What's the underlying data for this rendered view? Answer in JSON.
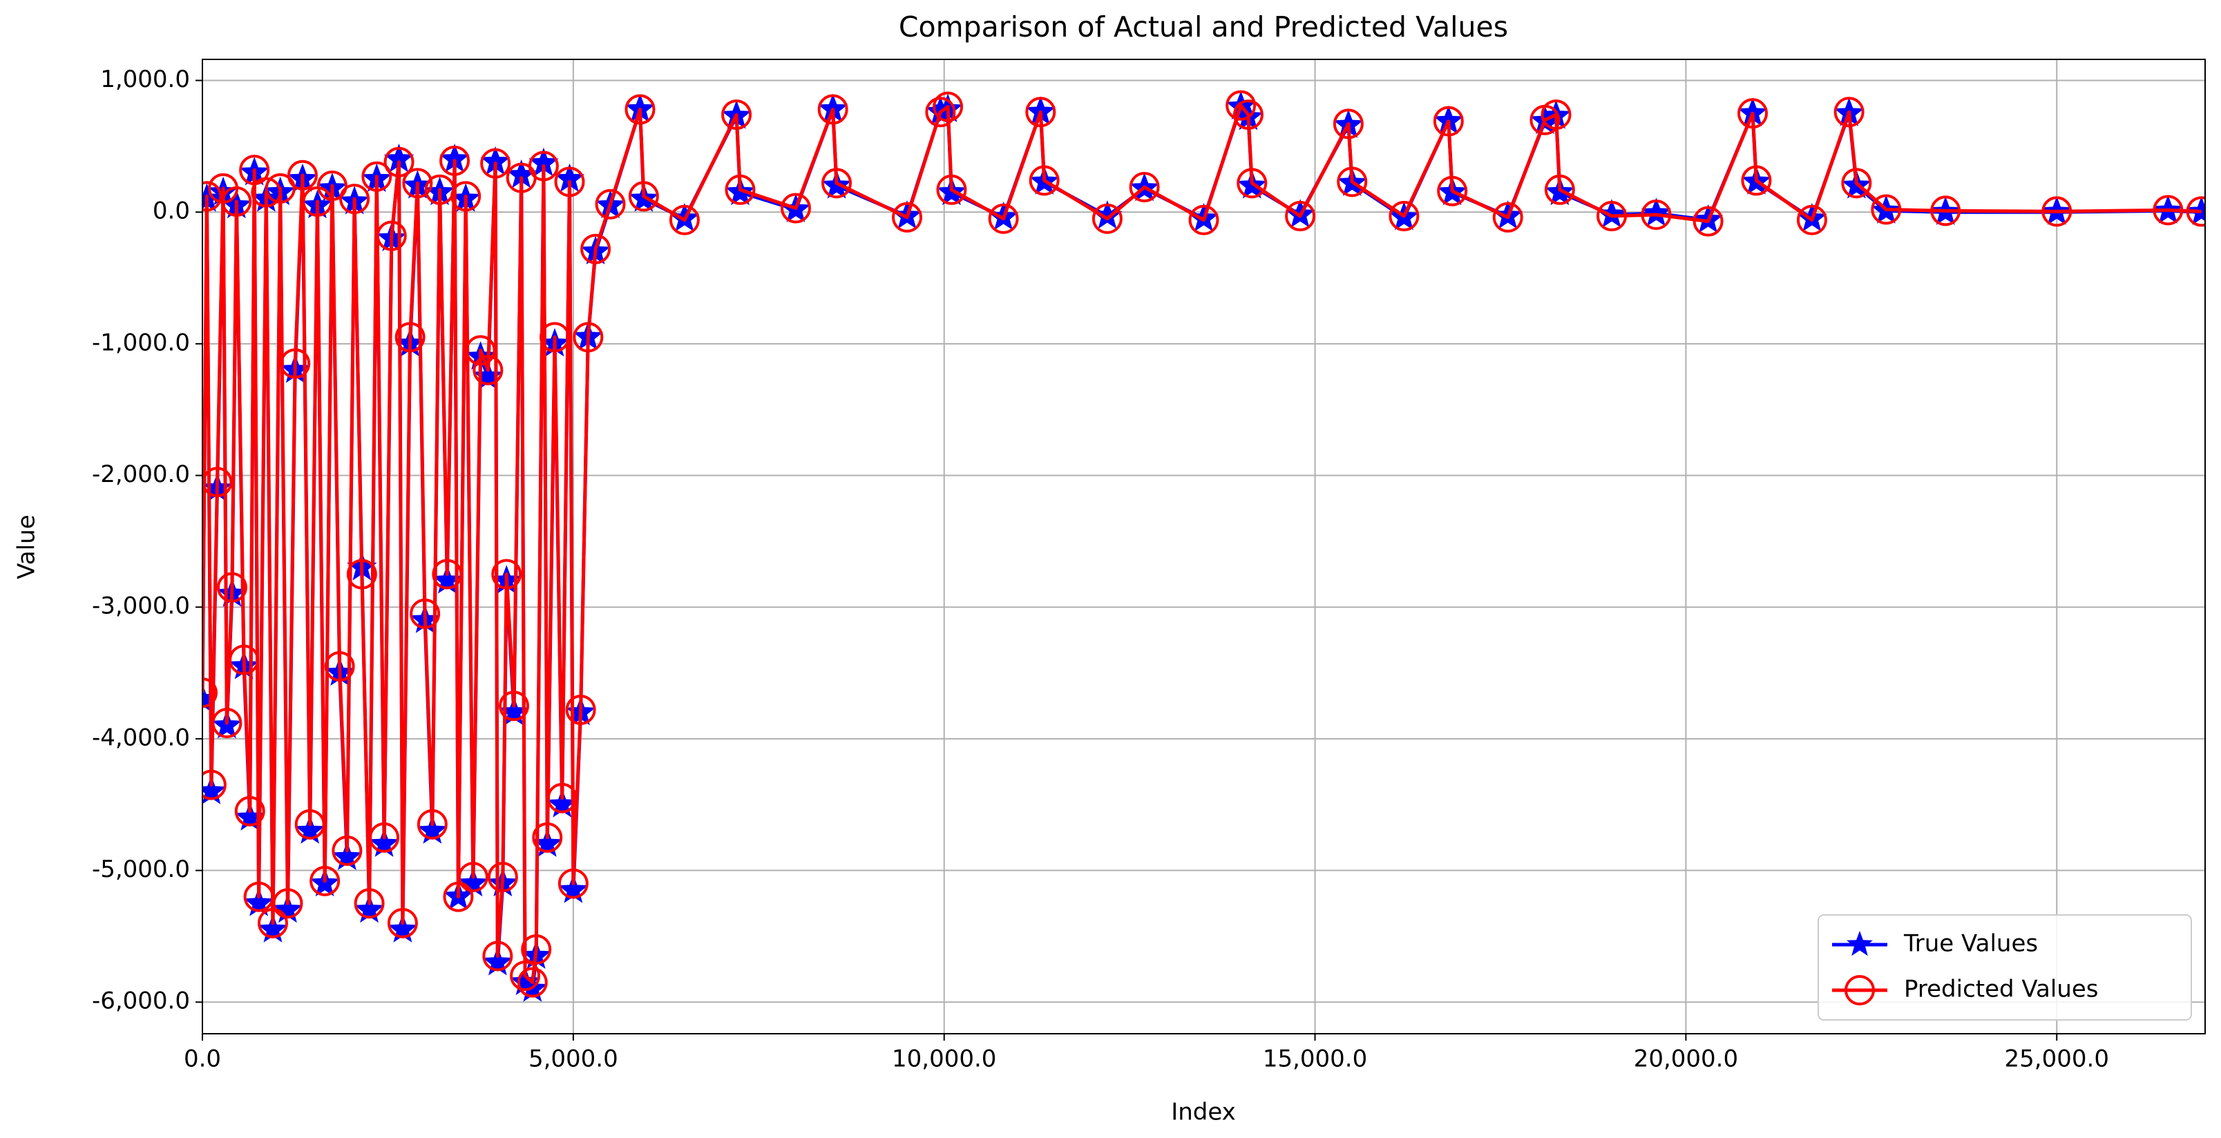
{
  "chart_data": {
    "type": "line",
    "title": "Comparison of Actual and Predicted Values",
    "x_label": "Index",
    "y_label": "Value",
    "x": [
      0,
      60,
      120,
      200,
      280,
      330,
      400,
      460,
      560,
      640,
      700,
      760,
      860,
      950,
      1050,
      1150,
      1250,
      1350,
      1450,
      1550,
      1650,
      1750,
      1850,
      1950,
      2050,
      2150,
      2250,
      2350,
      2450,
      2550,
      2650,
      2700,
      2800,
      2900,
      3000,
      3100,
      3200,
      3300,
      3400,
      3450,
      3550,
      3650,
      3750,
      3850,
      3950,
      3980,
      4050,
      4100,
      4200,
      4300,
      4350,
      4450,
      4500,
      4600,
      4650,
      4750,
      4850,
      4950,
      5000,
      5100,
      5200,
      5300,
      5500,
      5900,
      5950,
      6500,
      7200,
      7250,
      8000,
      8500,
      8550,
      9500,
      9950,
      10050,
      10100,
      10800,
      11300,
      11350,
      12200,
      12700,
      13500,
      14000,
      14100,
      14150,
      14800,
      15450,
      15500,
      16200,
      16800,
      16850,
      17600,
      18100,
      18250,
      18300,
      19000,
      19600,
      20300,
      20900,
      20950,
      21700,
      22200,
      22300,
      22700,
      23500,
      25000,
      26500,
      26950
    ],
    "series": [
      {
        "name": "True Values",
        "color": "#0000ff",
        "marker": "star",
        "values": [
          -3700,
          100,
          -4400,
          -2100,
          150,
          -3900,
          -2900,
          50,
          -3450,
          -4600,
          300,
          -5250,
          100,
          -5450,
          150,
          -5300,
          -1200,
          250,
          -4700,
          50,
          -5100,
          180,
          -3500,
          -4900,
          80,
          -2700,
          -5300,
          250,
          -4800,
          -200,
          400,
          -5450,
          -1000,
          200,
          -3100,
          -4700,
          150,
          -2800,
          400,
          -5200,
          100,
          -5100,
          -1100,
          -1250,
          380,
          -5700,
          -5100,
          -2800,
          -3800,
          280,
          -5850,
          -5900,
          -5650,
          370,
          -4800,
          -1000,
          -4500,
          250,
          -5150,
          -3800,
          -950,
          -300,
          50,
          780,
          100,
          -50,
          730,
          150,
          20,
          780,
          200,
          -30,
          760,
          780,
          150,
          -40,
          760,
          230,
          -30,
          180,
          -50,
          800,
          720,
          200,
          -20,
          660,
          220,
          -40,
          690,
          150,
          -30,
          690,
          730,
          150,
          -20,
          -10,
          -60,
          750,
          230,
          -50,
          750,
          200,
          10,
          0,
          0,
          10,
          0
        ]
      },
      {
        "name": "Predicted Values",
        "color": "#ff0000",
        "marker": "circle",
        "values": [
          -3650,
          120,
          -4350,
          -2050,
          180,
          -3880,
          -2850,
          80,
          -3400,
          -4550,
          320,
          -5200,
          150,
          -5400,
          180,
          -5250,
          -1150,
          280,
          -4650,
          80,
          -5080,
          200,
          -3450,
          -4850,
          100,
          -2750,
          -5250,
          270,
          -4750,
          -180,
          380,
          -5400,
          -950,
          220,
          -3050,
          -4650,
          170,
          -2750,
          390,
          -5200,
          120,
          -5050,
          -1050,
          -1200,
          370,
          -5650,
          -5050,
          -2750,
          -3750,
          260,
          -5800,
          -5850,
          -5600,
          350,
          -4750,
          -950,
          -4450,
          230,
          -5100,
          -3780,
          -950,
          -280,
          60,
          780,
          120,
          -60,
          740,
          170,
          30,
          780,
          220,
          -40,
          760,
          800,
          170,
          -50,
          760,
          240,
          -50,
          190,
          -60,
          810,
          740,
          220,
          -30,
          670,
          230,
          -30,
          690,
          160,
          -40,
          700,
          740,
          170,
          -30,
          -20,
          -70,
          750,
          240,
          -60,
          760,
          220,
          20,
          10,
          5,
          15,
          5
        ]
      }
    ],
    "xlim": [
      0,
      27000
    ],
    "ylim": [
      -6240,
      1160
    ],
    "xticks": [
      {
        "value": 0,
        "label": "0.0"
      },
      {
        "value": 5000,
        "label": "5,000.0"
      },
      {
        "value": 10000,
        "label": "10,000.0"
      },
      {
        "value": 15000,
        "label": "15,000.0"
      },
      {
        "value": 20000,
        "label": "20,000.0"
      },
      {
        "value": 25000,
        "label": "25,000.0"
      }
    ],
    "yticks": [
      {
        "value": -6000,
        "label": "-6,000.0"
      },
      {
        "value": -5000,
        "label": "-5,000.0"
      },
      {
        "value": -4000,
        "label": "-4,000.0"
      },
      {
        "value": -3000,
        "label": "-3,000.0"
      },
      {
        "value": -2000,
        "label": "-2,000.0"
      },
      {
        "value": -1000,
        "label": "-1,000.0"
      },
      {
        "value": 0,
        "label": "0.0"
      },
      {
        "value": 1000,
        "label": "1,000.0"
      }
    ],
    "grid": true,
    "legend": "lower right"
  }
}
